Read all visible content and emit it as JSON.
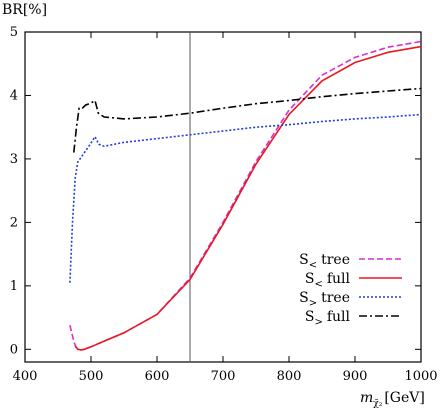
{
  "chart_data": {
    "type": "line",
    "title": "",
    "ylabel": "BR[%]",
    "xlabel": "m",
    "xlabel_sub": "χ̃₂",
    "xlabel_unit": "[GeV]",
    "xlim": [
      400,
      1000
    ],
    "ylim": [
      -0.2,
      5
    ],
    "xticks": [
      400,
      500,
      600,
      700,
      800,
      900,
      1000
    ],
    "yticks": [
      0,
      1,
      2,
      3,
      4,
      5
    ],
    "vline": 650,
    "legend": "bottom-right",
    "grid": false,
    "series": [
      {
        "name": "S< tree",
        "name_main": "S",
        "name_sub": "<",
        "name_suffix": "tree",
        "color": "#d62fd6",
        "dash": "6,3",
        "points": [
          [
            468,
            0.38
          ],
          [
            471,
            0.25
          ],
          [
            474,
            0.13
          ],
          [
            477,
            0.04
          ],
          [
            480,
            0.0
          ],
          [
            485,
            -0.01
          ],
          [
            490,
            0.0
          ],
          [
            500,
            0.04
          ],
          [
            520,
            0.13
          ],
          [
            550,
            0.26
          ],
          [
            600,
            0.55
          ],
          [
            650,
            1.12
          ],
          [
            700,
            2.0
          ],
          [
            750,
            2.96
          ],
          [
            800,
            3.77
          ],
          [
            850,
            4.32
          ],
          [
            900,
            4.6
          ],
          [
            950,
            4.76
          ],
          [
            1000,
            4.85
          ]
        ]
      },
      {
        "name": "S< full",
        "name_main": "S",
        "name_sub": "<",
        "name_suffix": "full",
        "color": "#e8191f",
        "dash": "",
        "points": [
          [
            476,
            0.05
          ],
          [
            480,
            0.0
          ],
          [
            485,
            -0.01
          ],
          [
            490,
            0.0
          ],
          [
            500,
            0.04
          ],
          [
            520,
            0.13
          ],
          [
            550,
            0.26
          ],
          [
            600,
            0.55
          ],
          [
            650,
            1.1
          ],
          [
            700,
            1.97
          ],
          [
            750,
            2.92
          ],
          [
            800,
            3.7
          ],
          [
            850,
            4.23
          ],
          [
            900,
            4.52
          ],
          [
            950,
            4.68
          ],
          [
            1000,
            4.77
          ]
        ]
      },
      {
        "name": "S> tree",
        "name_main": "S",
        "name_sub": ">",
        "name_suffix": "tree",
        "color": "#1f3fd9",
        "dash": "2,2",
        "points": [
          [
            468,
            1.05
          ],
          [
            472,
            2.0
          ],
          [
            476,
            2.7
          ],
          [
            480,
            2.95
          ],
          [
            490,
            3.1
          ],
          [
            500,
            3.25
          ],
          [
            506,
            3.35
          ],
          [
            512,
            3.23
          ],
          [
            520,
            3.2
          ],
          [
            550,
            3.26
          ],
          [
            600,
            3.32
          ],
          [
            650,
            3.38
          ],
          [
            700,
            3.44
          ],
          [
            750,
            3.5
          ],
          [
            800,
            3.54
          ],
          [
            850,
            3.59
          ],
          [
            900,
            3.63
          ],
          [
            950,
            3.66
          ],
          [
            1000,
            3.7
          ]
        ]
      },
      {
        "name": "S> full",
        "name_main": "S",
        "name_sub": ">",
        "name_suffix": "full",
        "color": "#000000",
        "dash": "8,3,2,3",
        "points": [
          [
            474,
            3.1
          ],
          [
            478,
            3.5
          ],
          [
            482,
            3.8
          ],
          [
            487,
            3.8
          ],
          [
            492,
            3.85
          ],
          [
            500,
            3.88
          ],
          [
            506,
            3.92
          ],
          [
            511,
            3.72
          ],
          [
            520,
            3.66
          ],
          [
            550,
            3.63
          ],
          [
            600,
            3.66
          ],
          [
            650,
            3.72
          ],
          [
            700,
            3.8
          ],
          [
            750,
            3.87
          ],
          [
            800,
            3.92
          ],
          [
            850,
            3.98
          ],
          [
            900,
            4.03
          ],
          [
            950,
            4.07
          ],
          [
            1000,
            4.11
          ]
        ]
      }
    ]
  }
}
